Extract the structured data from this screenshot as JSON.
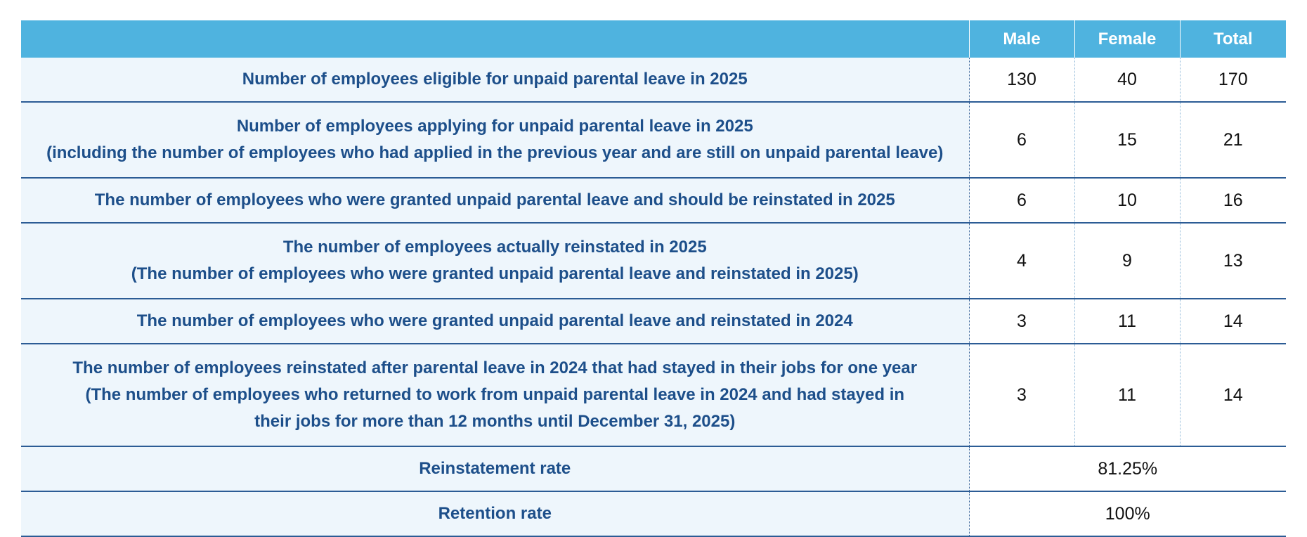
{
  "table": {
    "headers": {
      "label": "",
      "male": "Male",
      "female": "Female",
      "total": "Total"
    },
    "rows": [
      {
        "label_lines": [
          "Number of employees eligible for unpaid parental leave in 2025"
        ],
        "male": "130",
        "female": "40",
        "total": "170"
      },
      {
        "label_lines": [
          "Number of employees applying for unpaid parental leave in 2025",
          "(including the number of employees who had applied in the previous year and are still on unpaid parental leave)"
        ],
        "male": "6",
        "female": "15",
        "total": "21"
      },
      {
        "label_lines": [
          "The number of employees who were granted unpaid parental leave and should be reinstated in 2025"
        ],
        "male": "6",
        "female": "10",
        "total": "16"
      },
      {
        "label_lines": [
          "The number of employees actually reinstated in 2025",
          "(The number of employees who were granted unpaid parental leave and reinstated in 2025)"
        ],
        "male": "4",
        "female": "9",
        "total": "13"
      },
      {
        "label_lines": [
          "The number of employees who were granted unpaid parental leave and reinstated in 2024"
        ],
        "male": "3",
        "female": "11",
        "total": "14"
      },
      {
        "label_lines": [
          "The number of employees reinstated after parental leave in 2024 that had stayed in their jobs for one year",
          "(The number of employees who returned to work from unpaid parental leave in 2024 and had stayed in",
          "their jobs for more than 12 months until December 31, 2025)"
        ],
        "male": "3",
        "female": "11",
        "total": "14"
      }
    ],
    "rates": [
      {
        "label": "Reinstatement rate",
        "value": "81.25%"
      },
      {
        "label": "Retention rate",
        "value": "100%"
      }
    ]
  }
}
